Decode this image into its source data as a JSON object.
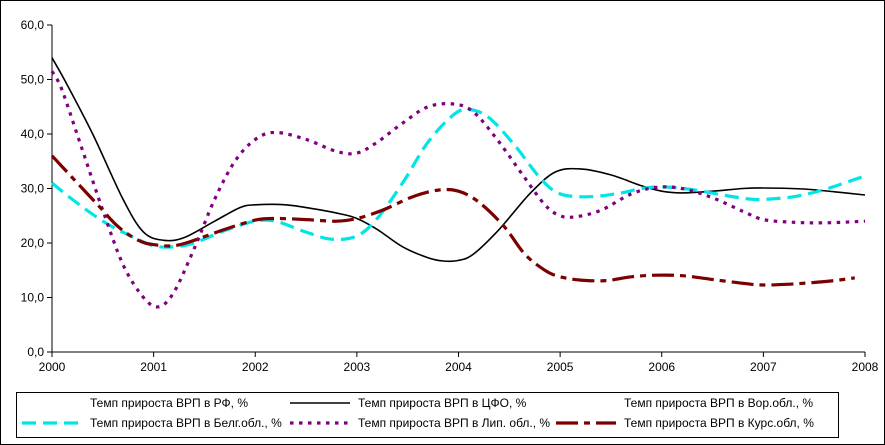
{
  "chart_data": {
    "type": "line",
    "x": [
      2000,
      2001,
      2002,
      2003,
      2004,
      2005,
      2006,
      2007,
      2008
    ],
    "x_tick_labels": [
      "2000",
      "2001",
      "2002",
      "2003",
      "2004",
      "2005",
      "2006",
      "2007",
      "2008"
    ],
    "y_tick_labels": [
      "0,0",
      "10,0",
      "20,0",
      "30,0",
      "40,0",
      "50,0",
      "60,0"
    ],
    "ylim": [
      0,
      60
    ],
    "xlim": [
      2000,
      2008
    ],
    "grid": false,
    "legend_position": "bottom",
    "series": [
      {
        "name": "Темп прироста ВРП в РФ, %",
        "style": "none",
        "color": "#000000",
        "points": []
      },
      {
        "name": "Темп прироста ВРП в ЦФО, %",
        "style": "solid",
        "color": "#000000",
        "points": [
          [
            2000.0,
            54.0
          ],
          [
            2000.15,
            49.0
          ],
          [
            2000.4,
            40.0
          ],
          [
            2000.7,
            28.0
          ],
          [
            2000.9,
            22.0
          ],
          [
            2001.1,
            20.5
          ],
          [
            2001.3,
            21.0
          ],
          [
            2001.6,
            24.0
          ],
          [
            2001.85,
            26.5
          ],
          [
            2002.0,
            27.0
          ],
          [
            2002.3,
            27.0
          ],
          [
            2002.6,
            26.2
          ],
          [
            2002.85,
            25.3
          ],
          [
            2003.0,
            24.5
          ],
          [
            2003.2,
            22.5
          ],
          [
            2003.45,
            19.3
          ],
          [
            2003.7,
            17.3
          ],
          [
            2003.85,
            16.7
          ],
          [
            2004.0,
            16.8
          ],
          [
            2004.15,
            18.0
          ],
          [
            2004.4,
            22.5
          ],
          [
            2004.7,
            29.0
          ],
          [
            2004.95,
            33.0
          ],
          [
            2005.2,
            33.6
          ],
          [
            2005.5,
            32.5
          ],
          [
            2005.8,
            30.5
          ],
          [
            2006.0,
            29.5
          ],
          [
            2006.2,
            29.2
          ],
          [
            2006.5,
            29.5
          ],
          [
            2006.8,
            30.0
          ],
          [
            2007.0,
            30.1
          ],
          [
            2007.4,
            29.9
          ],
          [
            2007.7,
            29.4
          ],
          [
            2008.0,
            28.8
          ]
        ]
      },
      {
        "name": "Темп прироста ВРП в Вор.обл., %",
        "style": "none",
        "color": "#000000",
        "points": []
      },
      {
        "name": "Темп прироста ВРП в Белг.обл.,  %",
        "style": "dash",
        "color": "#00e5e5",
        "points": [
          [
            2000.0,
            31.0
          ],
          [
            2000.2,
            28.0
          ],
          [
            2000.5,
            24.0
          ],
          [
            2000.75,
            21.5
          ],
          [
            2001.0,
            19.5
          ],
          [
            2001.2,
            19.3
          ],
          [
            2001.4,
            20.0
          ],
          [
            2001.7,
            22.3
          ],
          [
            2002.0,
            24.0
          ],
          [
            2002.2,
            24.0
          ],
          [
            2002.5,
            22.0
          ],
          [
            2002.75,
            20.7
          ],
          [
            2003.0,
            21.3
          ],
          [
            2003.2,
            24.5
          ],
          [
            2003.45,
            31.0
          ],
          [
            2003.7,
            38.5
          ],
          [
            2003.95,
            43.5
          ],
          [
            2004.1,
            44.5
          ],
          [
            2004.3,
            43.0
          ],
          [
            2004.55,
            38.0
          ],
          [
            2004.8,
            32.0
          ],
          [
            2005.0,
            29.0
          ],
          [
            2005.3,
            28.5
          ],
          [
            2005.6,
            29.2
          ],
          [
            2005.8,
            30.0
          ],
          [
            2006.0,
            30.3
          ],
          [
            2006.3,
            29.8
          ],
          [
            2006.6,
            28.8
          ],
          [
            2006.85,
            28.1
          ],
          [
            2007.0,
            28.0
          ],
          [
            2007.3,
            28.5
          ],
          [
            2007.6,
            29.8
          ],
          [
            2008.0,
            32.3
          ]
        ]
      },
      {
        "name": "Темп прироста ВРП в Лип. обл., %",
        "style": "dot",
        "color": "#800080",
        "points": [
          [
            2000.0,
            51.5
          ],
          [
            2000.1,
            48.0
          ],
          [
            2000.3,
            37.0
          ],
          [
            2000.5,
            26.0
          ],
          [
            2000.7,
            16.0
          ],
          [
            2000.9,
            10.0
          ],
          [
            2001.05,
            8.3
          ],
          [
            2001.2,
            11.0
          ],
          [
            2001.4,
            19.0
          ],
          [
            2001.6,
            28.0
          ],
          [
            2001.8,
            35.0
          ],
          [
            2002.0,
            39.0
          ],
          [
            2002.2,
            40.3
          ],
          [
            2002.5,
            39.0
          ],
          [
            2002.8,
            36.8
          ],
          [
            2003.0,
            36.5
          ],
          [
            2003.2,
            38.5
          ],
          [
            2003.45,
            42.0
          ],
          [
            2003.7,
            45.0
          ],
          [
            2003.95,
            45.5
          ],
          [
            2004.15,
            44.0
          ],
          [
            2004.4,
            38.5
          ],
          [
            2004.65,
            32.0
          ],
          [
            2004.85,
            27.0
          ],
          [
            2005.0,
            25.0
          ],
          [
            2005.15,
            24.8
          ],
          [
            2005.4,
            26.0
          ],
          [
            2005.7,
            29.0
          ],
          [
            2005.95,
            30.2
          ],
          [
            2006.2,
            30.0
          ],
          [
            2006.5,
            28.3
          ],
          [
            2006.8,
            25.8
          ],
          [
            2007.0,
            24.3
          ],
          [
            2007.3,
            23.8
          ],
          [
            2007.6,
            23.7
          ],
          [
            2008.0,
            24.0
          ]
        ]
      },
      {
        "name": "Темп прироста ВРП в Курс.обл, %",
        "style": "longdash",
        "color": "#7b0000",
        "points": [
          [
            2000.0,
            36.0
          ],
          [
            2000.2,
            32.0
          ],
          [
            2000.45,
            27.0
          ],
          [
            2000.65,
            23.0
          ],
          [
            2000.85,
            20.5
          ],
          [
            2001.0,
            19.7
          ],
          [
            2001.2,
            19.5
          ],
          [
            2001.4,
            20.5
          ],
          [
            2001.7,
            22.5
          ],
          [
            2002.0,
            24.2
          ],
          [
            2002.2,
            24.5
          ],
          [
            2002.5,
            24.3
          ],
          [
            2002.8,
            24.0
          ],
          [
            2003.0,
            24.5
          ],
          [
            2003.25,
            26.0
          ],
          [
            2003.55,
            28.5
          ],
          [
            2003.8,
            29.7
          ],
          [
            2004.0,
            29.5
          ],
          [
            2004.2,
            27.5
          ],
          [
            2004.45,
            23.0
          ],
          [
            2004.65,
            18.0
          ],
          [
            2004.85,
            15.0
          ],
          [
            2005.0,
            13.8
          ],
          [
            2005.2,
            13.2
          ],
          [
            2005.45,
            13.1
          ],
          [
            2005.7,
            13.8
          ],
          [
            2005.95,
            14.1
          ],
          [
            2006.2,
            14.0
          ],
          [
            2006.5,
            13.3
          ],
          [
            2006.8,
            12.6
          ],
          [
            2007.0,
            12.3
          ],
          [
            2007.3,
            12.5
          ],
          [
            2007.65,
            13.0
          ],
          [
            2007.9,
            13.6
          ]
        ]
      }
    ]
  }
}
